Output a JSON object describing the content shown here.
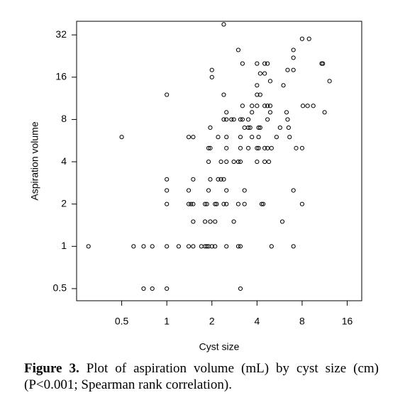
{
  "chart_data": {
    "type": "scatter",
    "xlabel": "Cyst size",
    "ylabel": "Aspiration volume",
    "log_x": true,
    "log_y": true,
    "color": "#000000",
    "xlim": [
      0.25,
      20
    ],
    "ylim": [
      0.41,
      40
    ],
    "xticks": [
      0.5,
      1,
      2,
      4,
      8,
      16
    ],
    "yticks": [
      0.5,
      1,
      2,
      4,
      8,
      16,
      32
    ],
    "x": [
      0.3,
      0.6,
      0.7,
      0.8,
      1,
      1.2,
      1.4,
      1.5,
      1.7,
      1.8,
      1.85,
      1.9,
      2,
      2.1,
      2.5,
      3,
      3.1,
      5,
      7,
      0.7,
      0.8,
      1,
      3.1,
      1,
      1.4,
      1.45,
      1.5,
      1.8,
      1.85,
      2.1,
      2.15,
      2.4,
      2.5,
      3,
      3.3,
      4.3,
      4.4,
      8,
      1.5,
      1.8,
      1.95,
      2.1,
      2.8,
      5.9,
      1,
      1.4,
      1.9,
      2.5,
      3.3,
      7,
      1,
      1.5,
      1.95,
      2.2,
      2.3,
      2.4,
      1.9,
      2.3,
      2.5,
      2.8,
      3,
      3.1,
      4,
      4.5,
      4.8,
      1.9,
      1.95,
      2.5,
      3.1,
      3.5,
      4,
      4.1,
      4.5,
      4.7,
      5,
      7.3,
      8,
      0.5,
      1.4,
      1.5,
      2.2,
      2.5,
      3.1,
      3.7,
      4.1,
      5.4,
      6.6,
      1.95,
      3.3,
      3.5,
      3.6,
      4.1,
      4.2,
      5.7,
      6.5,
      2.4,
      2.5,
      2.7,
      2.8,
      3.1,
      3.2,
      3.5,
      4.7,
      6.4,
      2.5,
      3.7,
      4.9,
      6.3,
      11.3,
      3.2,
      3.7,
      4,
      4.5,
      4.7,
      4.9,
      8.1,
      8.7,
      9.5,
      1,
      2.4,
      4,
      4.2,
      4,
      6,
      4.9,
      12.2,
      4.2,
      4.5,
      2,
      6.4,
      7,
      2,
      3.2,
      4,
      4.5,
      4.7,
      10.8,
      11,
      7,
      3,
      7,
      8,
      8.9,
      2.4
    ],
    "y": [
      1,
      1,
      1,
      1,
      1,
      1,
      1,
      1,
      1,
      1,
      1,
      1,
      1,
      1,
      1,
      1,
      1,
      1,
      1,
      0.5,
      0.5,
      0.5,
      0.5,
      2,
      2,
      2,
      2,
      2,
      2,
      2,
      2,
      2,
      2,
      2,
      2,
      2,
      2,
      2,
      1.5,
      1.5,
      1.5,
      1.5,
      1.5,
      1.5,
      2.5,
      2.5,
      2.5,
      2.5,
      2.5,
      2.5,
      3,
      3,
      3,
      3,
      3,
      3,
      4,
      4,
      4,
      4,
      4,
      4,
      4,
      4,
      4,
      5,
      5,
      5,
      5,
      5,
      5,
      5,
      5,
      5,
      5,
      5,
      5,
      6,
      6,
      6,
      6,
      6,
      6,
      6,
      6,
      6,
      6,
      7,
      7,
      7,
      7,
      7,
      7,
      7,
      7,
      8,
      8,
      8,
      8,
      8,
      8,
      8,
      8,
      8,
      9,
      9,
      9,
      9,
      9,
      10,
      10,
      10,
      10,
      10,
      10,
      10,
      10,
      10,
      12,
      12,
      12,
      12,
      14,
      14,
      15,
      15,
      17,
      17,
      18,
      18,
      18,
      16,
      20,
      20,
      20,
      20,
      20,
      20,
      22,
      25,
      25,
      30,
      30,
      38
    ]
  },
  "caption": {
    "label": "Figure 3.",
    "text": "Plot of aspiration volume (mL) by cyst size (cm) (P<0.001; Spearman rank correlation)."
  }
}
